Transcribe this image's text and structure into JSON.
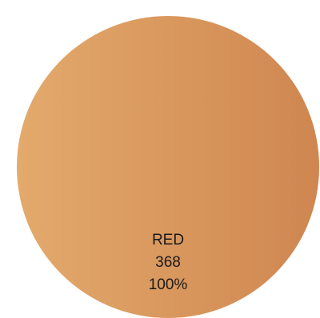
{
  "chart_data": {
    "type": "pie",
    "slices": [
      {
        "label": "RED",
        "value": 368,
        "percent": "100%",
        "color_start": "#e3aa6c",
        "color_end": "#cf8650"
      }
    ]
  }
}
